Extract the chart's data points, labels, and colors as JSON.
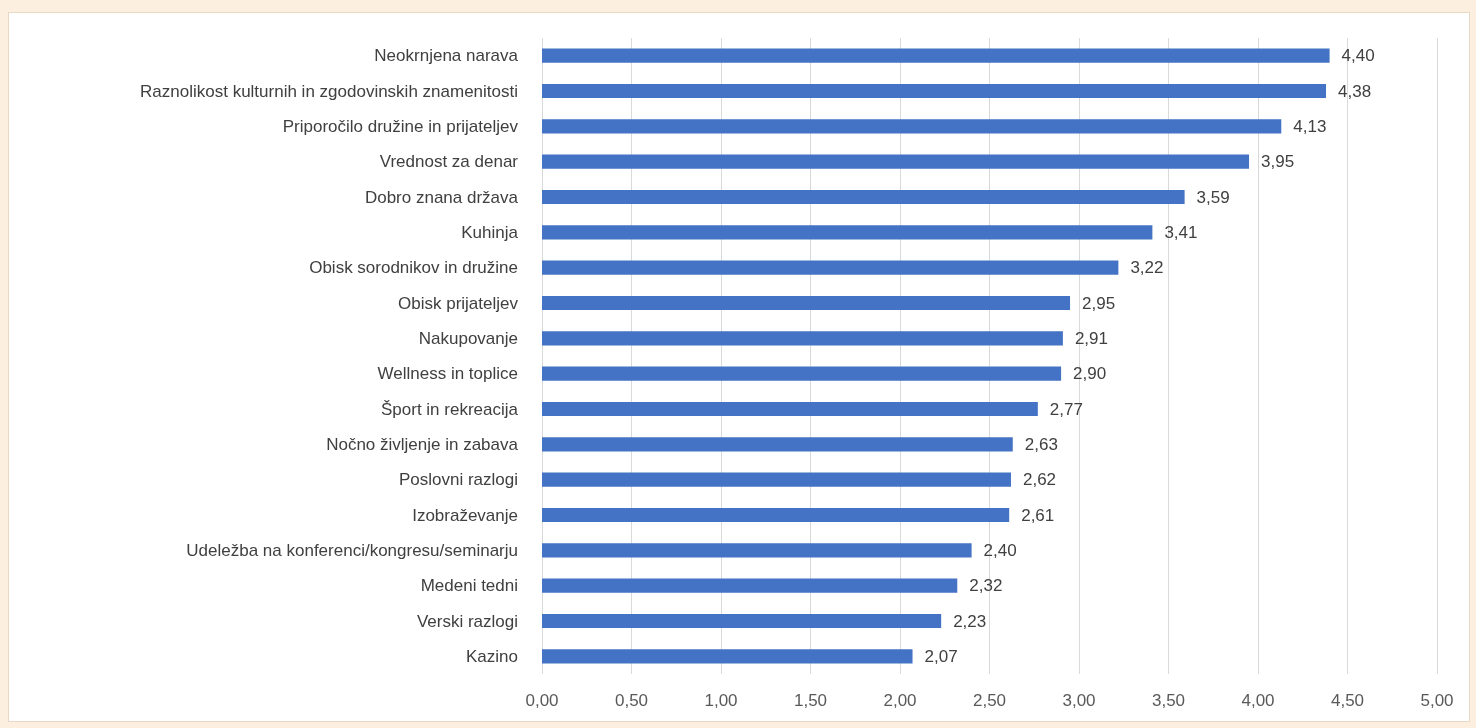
{
  "chart_data": {
    "type": "bar",
    "orientation": "horizontal",
    "categories": [
      "Neokrnjena narava",
      "Raznolikost kulturnih in zgodovinskih znamenitosti",
      "Priporočilo družine in prijateljev",
      "Vrednost za denar",
      "Dobro znana država",
      "Kuhinja",
      "Obisk sorodnikov in družine",
      "Obisk prijateljev",
      "Nakupovanje",
      "Wellness in toplice",
      "Šport in rekreacija",
      "Nočno življenje in zabava",
      "Poslovni razlogi",
      "Izobraževanje",
      "Udeležba na konferenci/kongresu/seminarju",
      "Medeni tedni",
      "Verski razlogi",
      "Kazino"
    ],
    "values": [
      4.4,
      4.38,
      4.13,
      3.95,
      3.59,
      3.41,
      3.22,
      2.95,
      2.91,
      2.9,
      2.77,
      2.63,
      2.62,
      2.61,
      2.4,
      2.32,
      2.23,
      2.07
    ],
    "value_labels": [
      "4,40",
      "4,38",
      "4,13",
      "3,95",
      "3,59",
      "3,41",
      "3,22",
      "2,95",
      "2,91",
      "2,90",
      "2,77",
      "2,63",
      "2,62",
      "2,61",
      "2,40",
      "2,32",
      "2,23",
      "2,07"
    ],
    "color": "#4472c4",
    "xlim": [
      0,
      5
    ],
    "xticks": [
      {
        "value": 0,
        "label": "0,00"
      },
      {
        "value": 0.5,
        "label": "0,50"
      },
      {
        "value": 1,
        "label": "1,00"
      },
      {
        "value": 1.5,
        "label": "1,50"
      },
      {
        "value": 2,
        "label": "2,00"
      },
      {
        "value": 2.5,
        "label": "2,50"
      },
      {
        "value": 3,
        "label": "3,00"
      },
      {
        "value": 3.5,
        "label": "3,50"
      },
      {
        "value": 4,
        "label": "4,00"
      },
      {
        "value": 4.5,
        "label": "4,50"
      },
      {
        "value": 5,
        "label": "5,00"
      }
    ],
    "grid": "x"
  }
}
